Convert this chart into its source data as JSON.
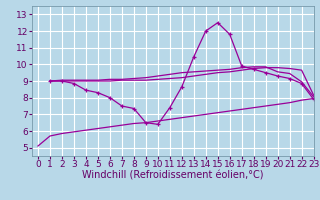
{
  "xlabel": "Windchill (Refroidissement éolien,°C)",
  "bg_color": "#b8d8e8",
  "line_color": "#990099",
  "grid_color": "#ffffff",
  "xlim": [
    -0.5,
    23
  ],
  "ylim": [
    4.5,
    13.5
  ],
  "xticks": [
    0,
    1,
    2,
    3,
    4,
    5,
    6,
    7,
    8,
    9,
    10,
    11,
    12,
    13,
    14,
    15,
    16,
    17,
    18,
    19,
    20,
    21,
    22,
    23
  ],
  "yticks": [
    5,
    6,
    7,
    8,
    9,
    10,
    11,
    12,
    13
  ],
  "series": [
    {
      "x": [
        0,
        1,
        2,
        3,
        4,
        5,
        6,
        7,
        8,
        9,
        10,
        11,
        12,
        13,
        14,
        15,
        16,
        17,
        18,
        19,
        20,
        21,
        22,
        23
      ],
      "y": [
        5.1,
        5.7,
        5.85,
        5.95,
        6.05,
        6.15,
        6.25,
        6.35,
        6.45,
        6.5,
        6.6,
        6.7,
        6.8,
        6.9,
        7.0,
        7.1,
        7.2,
        7.3,
        7.4,
        7.5,
        7.6,
        7.7,
        7.85,
        7.95
      ],
      "marker": false
    },
    {
      "x": [
        1,
        2,
        3,
        4,
        5,
        6,
        7,
        8,
        9,
        10,
        11,
        12,
        13,
        14,
        15,
        16,
        17,
        18,
        19,
        20,
        21,
        22,
        23
      ],
      "y": [
        9.0,
        9.0,
        8.85,
        8.45,
        8.3,
        8.0,
        7.5,
        7.35,
        6.5,
        6.4,
        7.4,
        8.65,
        10.45,
        12.0,
        12.5,
        11.8,
        9.9,
        9.7,
        9.5,
        9.3,
        9.15,
        8.85,
        7.9
      ],
      "marker": true
    },
    {
      "x": [
        1,
        2,
        3,
        4,
        5,
        6,
        7,
        8,
        9,
        10,
        11,
        12,
        13,
        14,
        15,
        16,
        17,
        18,
        19,
        20,
        21,
        22,
        23
      ],
      "y": [
        9.0,
        9.05,
        9.05,
        9.05,
        9.05,
        9.1,
        9.1,
        9.15,
        9.2,
        9.3,
        9.4,
        9.5,
        9.55,
        9.6,
        9.65,
        9.7,
        9.8,
        9.85,
        9.85,
        9.55,
        9.45,
        8.95,
        8.05
      ],
      "marker": false
    },
    {
      "x": [
        1,
        2,
        3,
        4,
        5,
        6,
        7,
        8,
        9,
        10,
        11,
        12,
        13,
        14,
        15,
        16,
        17,
        18,
        19,
        20,
        21,
        22,
        23
      ],
      "y": [
        9.0,
        9.0,
        9.0,
        9.0,
        9.0,
        9.0,
        9.05,
        9.05,
        9.05,
        9.1,
        9.15,
        9.2,
        9.3,
        9.4,
        9.5,
        9.55,
        9.65,
        9.75,
        9.8,
        9.8,
        9.75,
        9.65,
        8.15
      ],
      "marker": false
    }
  ],
  "tick_fontsize": 6.5,
  "label_fontsize": 7
}
